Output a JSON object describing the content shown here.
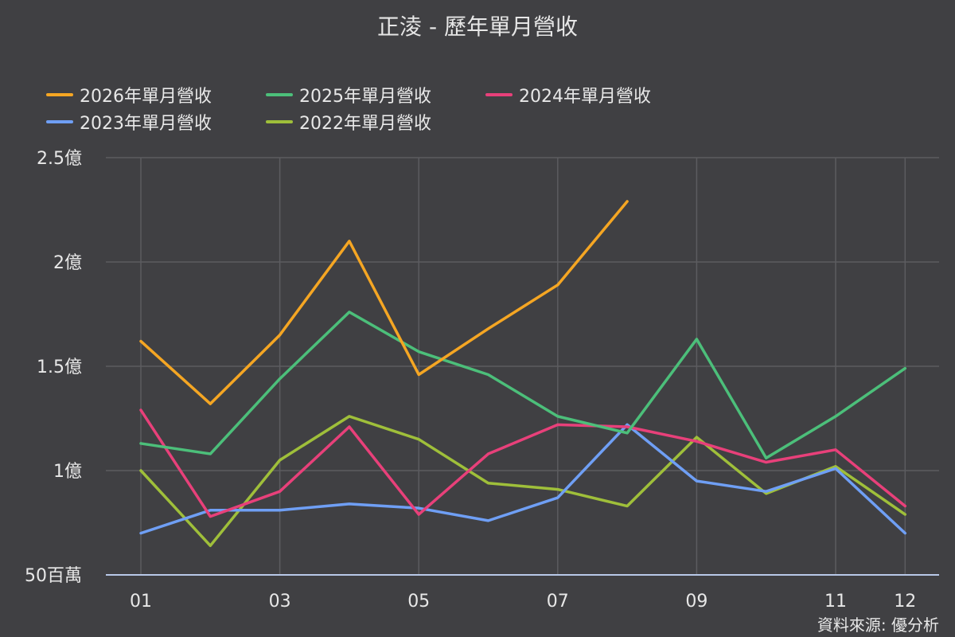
{
  "header": {
    "title": "正淩 - 歷年單月營收"
  },
  "footer": {
    "source": "資料來源: 優分析"
  },
  "colors": {
    "background": "#404043",
    "grid": "#5c5c60",
    "axis": "#b8c8e8"
  },
  "chart_data": {
    "type": "line",
    "title": "正淩 - 歷年單月營收",
    "categories": [
      "01",
      "02",
      "03",
      "04",
      "05",
      "06",
      "07",
      "08",
      "09",
      "10",
      "11",
      "12"
    ],
    "x_tick_labels": [
      "01",
      "03",
      "05",
      "07",
      "09",
      "11",
      "12"
    ],
    "y_tick_labels": [
      "50百萬",
      "1億",
      "1.5億",
      "2億",
      "2.5億"
    ],
    "y_ticks": [
      0.5,
      1.0,
      1.5,
      2.0,
      2.5
    ],
    "ylim": [
      0.5,
      2.5
    ],
    "y_unit": "億",
    "grid": true,
    "legend_position": "top",
    "series": [
      {
        "name": "2026年單月營收",
        "color": "#f5a623",
        "values": [
          1.62,
          1.32,
          1.65,
          2.1,
          1.46,
          1.68,
          1.89,
          2.29,
          null,
          null,
          null,
          null
        ]
      },
      {
        "name": "2025年單月營收",
        "color": "#4cbf7a",
        "values": [
          1.13,
          1.08,
          1.44,
          1.76,
          1.57,
          1.46,
          1.26,
          1.18,
          1.63,
          1.06,
          1.26,
          1.49
        ]
      },
      {
        "name": "2024年單月營收",
        "color": "#e8407a",
        "values": [
          1.29,
          0.78,
          0.9,
          1.21,
          0.79,
          1.08,
          1.22,
          1.21,
          1.14,
          1.04,
          1.1,
          0.83
        ]
      },
      {
        "name": "2023年單月營收",
        "color": "#6f9ff5",
        "values": [
          0.7,
          0.81,
          0.81,
          0.84,
          0.82,
          0.76,
          0.87,
          1.22,
          0.95,
          0.9,
          1.01,
          0.7
        ]
      },
      {
        "name": "2022年單月營收",
        "color": "#9fbf3a",
        "values": [
          1.0,
          0.64,
          1.05,
          1.26,
          1.15,
          0.94,
          0.91,
          0.83,
          1.16,
          0.89,
          1.02,
          0.79
        ]
      }
    ]
  }
}
